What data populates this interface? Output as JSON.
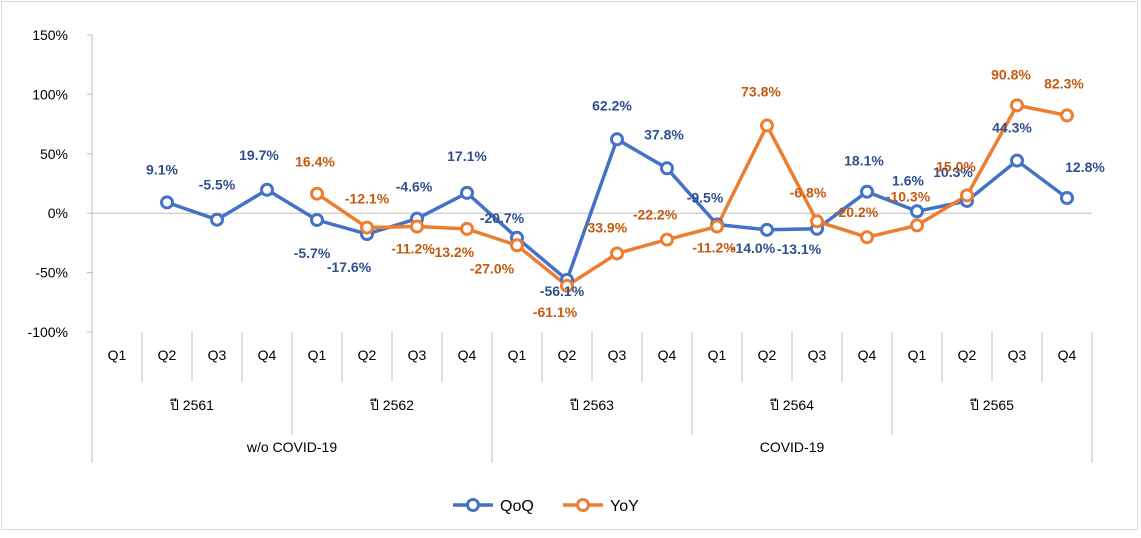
{
  "chart_data": {
    "type": "line",
    "ylim": [
      -100,
      150
    ],
    "y_ticks": [
      -100,
      -50,
      0,
      50,
      100,
      150
    ],
    "y_tick_labels": [
      "-100%",
      "-50%",
      "0%",
      "50%",
      "100%",
      "150%"
    ],
    "categories": [
      "Q1",
      "Q2",
      "Q3",
      "Q4",
      "Q1",
      "Q2",
      "Q3",
      "Q4",
      "Q1",
      "Q2",
      "Q3",
      "Q4",
      "Q1",
      "Q2",
      "Q3",
      "Q4",
      "Q1",
      "Q2",
      "Q3",
      "Q4"
    ],
    "years": [
      {
        "label": "ปี 2561",
        "count": 4
      },
      {
        "label": "ปี 2562",
        "count": 4
      },
      {
        "label": "ปี 2563",
        "count": 4
      },
      {
        "label": "ปี 2564",
        "count": 4
      },
      {
        "label": "ปี 2565",
        "count": 4
      }
    ],
    "periods": [
      {
        "label": "w/o COVID-19",
        "count": 8
      },
      {
        "label": "COVID-19",
        "count": 12
      }
    ],
    "series": [
      {
        "name": "QoQ",
        "color": "#4472c4",
        "values": [
          null,
          9.1,
          -5.5,
          19.7,
          -5.7,
          -17.6,
          -4.6,
          17.1,
          -20.7,
          -56.1,
          62.2,
          37.8,
          -9.5,
          -14.0,
          -13.1,
          18.1,
          1.6,
          10.3,
          44.3,
          12.8
        ],
        "labels": [
          null,
          "9.1%",
          "-5.5%",
          "19.7%",
          "-5.7%",
          "-17.6%",
          "-4.6%",
          "17.1%",
          "-20.7%",
          "-56.1%",
          "62.2%",
          "37.8%",
          "-9.5%",
          "-14.0%",
          "-13.1%",
          "18.1%",
          "1.6%",
          "10.3%",
          "44.3%",
          "12.8%"
        ]
      },
      {
        "name": "YoY",
        "color": "#ed7d31",
        "values": [
          null,
          null,
          null,
          null,
          16.4,
          -12.1,
          -11.2,
          -13.2,
          -27.0,
          -61.1,
          -33.9,
          -22.2,
          -11.2,
          73.8,
          -6.8,
          -20.2,
          -10.3,
          15.0,
          90.8,
          82.3
        ],
        "labels": [
          null,
          null,
          null,
          null,
          "16.4%",
          "-12.1%",
          "-11.2%",
          "-13.2%",
          "-27.0%",
          "-61.1%",
          "-33.9%",
          "-22.2%",
          "-11.2%",
          "73.8%",
          "-6.8%",
          "-20.2%",
          "-10.3%",
          "15.0%",
          "90.8%",
          "82.3%"
        ]
      }
    ],
    "gridlines": false,
    "legend_position": "bottom"
  }
}
